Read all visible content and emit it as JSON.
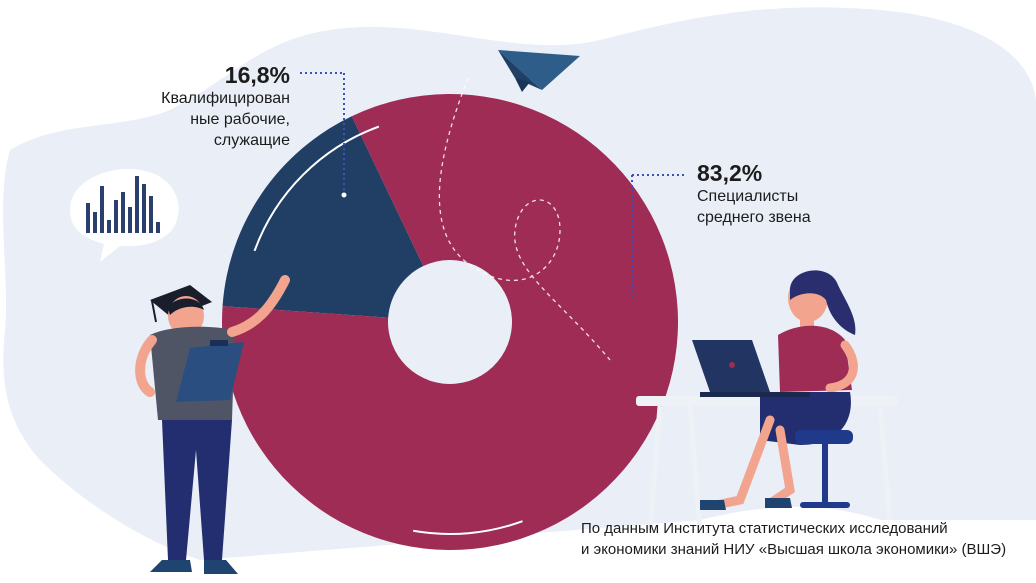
{
  "chart_data": {
    "type": "pie",
    "series": [
      {
        "pct_label": "16,8%",
        "value": 16.8,
        "label": "Квалифицированные рабочие, служащие",
        "label_lines": [
          "Квалифицирован",
          "ные рабочие,",
          "служащие"
        ],
        "color": "#213f65"
      },
      {
        "pct_label": "83,2%",
        "value": 83.2,
        "label": "Специалисты среднего звена",
        "label_lines": [
          "Специалисты",
          "среднего звена"
        ],
        "color": "#9e2c55"
      }
    ]
  },
  "source_lines": [
    "По данным Института статистических исследований",
    "и экономики знаний НИУ «Высшая школа экономики» (ВШЭ)"
  ],
  "colors": {
    "background_blob": "#e9eef7",
    "accent_dot": "#3d4fb8"
  },
  "icons": [
    "paper-plane-icon",
    "bar-chart-bubble-icon",
    "graduation-cap-icon",
    "laptop-icon"
  ]
}
